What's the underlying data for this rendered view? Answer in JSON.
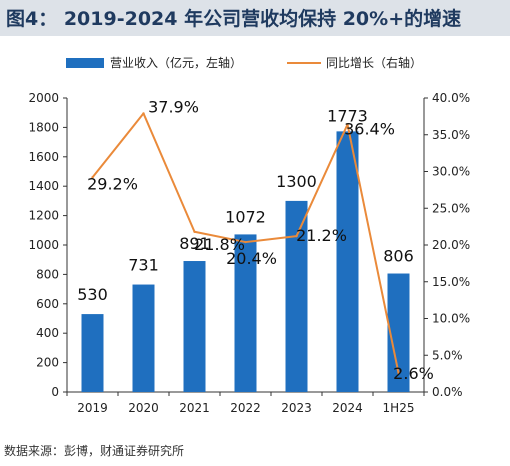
{
  "title": "图4： 2019-2024 年公司营收均保持 20%+的增速",
  "source": "数据来源：彭博，财通证券研究所",
  "colors": {
    "bar": "#1f6fbf",
    "line": "#ea8a3a",
    "title_bg": "#dde2e8",
    "title_text": "#1f3a5f"
  },
  "chart_data": {
    "type": "bar",
    "categories": [
      "2019",
      "2020",
      "2021",
      "2022",
      "2023",
      "2024",
      "1H25"
    ],
    "series": [
      {
        "name": "营业收入（亿元，左轴）",
        "type": "bar",
        "axis": "left",
        "values": [
          530,
          731,
          891,
          1072,
          1300,
          1773,
          806
        ],
        "labels": [
          "530",
          "731",
          "891",
          "1072",
          "1300",
          "1773",
          "806"
        ]
      },
      {
        "name": "同比增长（右轴）",
        "type": "line",
        "axis": "right",
        "values": [
          29.2,
          37.9,
          21.8,
          20.4,
          21.2,
          36.4,
          2.6
        ],
        "labels": [
          "29.2%",
          "37.9%",
          "21.8%",
          "20.4%",
          "21.2%",
          "36.4%",
          "2.6%"
        ]
      }
    ],
    "left_axis": {
      "ylim": [
        0,
        2000
      ],
      "ticks": [
        "0",
        "200",
        "400",
        "600",
        "800",
        "1000",
        "1200",
        "1400",
        "1600",
        "1800",
        "2000"
      ]
    },
    "right_axis": {
      "ylim": [
        0,
        40
      ],
      "ticks": [
        "0.0%",
        "5.0%",
        "10.0%",
        "15.0%",
        "20.0%",
        "25.0%",
        "30.0%",
        "35.0%",
        "40.0%"
      ]
    },
    "legend_position": "top",
    "grid": false
  }
}
